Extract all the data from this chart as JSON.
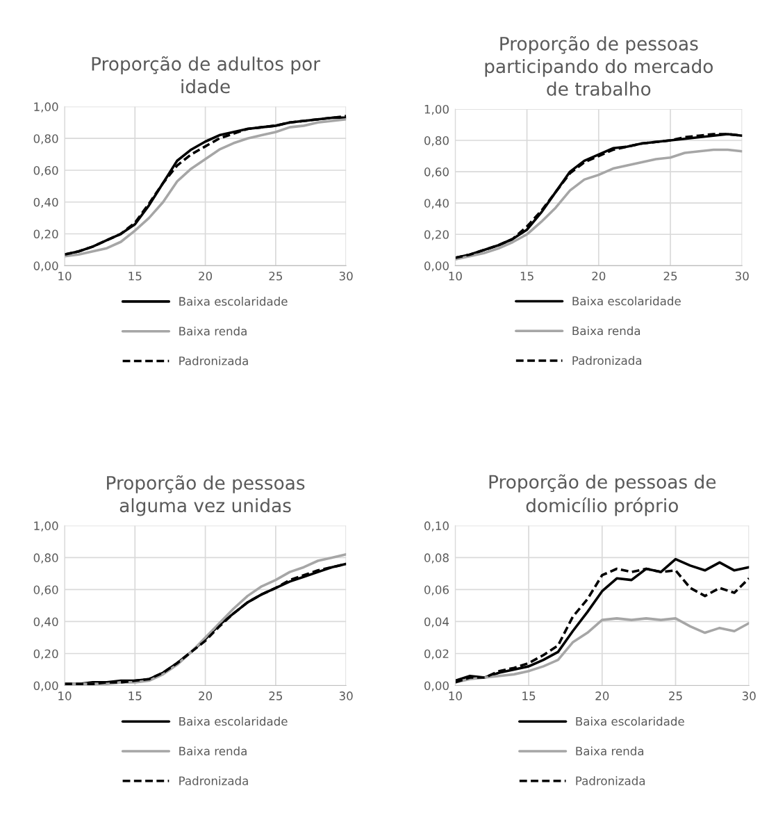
{
  "chart_data": [
    {
      "type": "line",
      "title": "Proporção de adultos por\nidade",
      "x": [
        10,
        11,
        12,
        13,
        14,
        15,
        16,
        17,
        18,
        19,
        20,
        21,
        22,
        23,
        24,
        25,
        26,
        27,
        28,
        29,
        30
      ],
      "series": [
        {
          "name": "Baixa escolaridade",
          "color": "#000000",
          "line_style": "solid",
          "values": [
            0.07,
            0.09,
            0.12,
            0.16,
            0.2,
            0.26,
            0.38,
            0.52,
            0.66,
            0.73,
            0.78,
            0.82,
            0.84,
            0.86,
            0.87,
            0.88,
            0.9,
            0.91,
            0.92,
            0.93,
            0.93
          ]
        },
        {
          "name": "Baixa renda",
          "color": "#a6a6a6",
          "line_style": "solid",
          "values": [
            0.06,
            0.07,
            0.09,
            0.11,
            0.15,
            0.22,
            0.3,
            0.4,
            0.53,
            0.61,
            0.67,
            0.73,
            0.77,
            0.8,
            0.82,
            0.84,
            0.87,
            0.88,
            0.9,
            0.91,
            0.92
          ]
        },
        {
          "name": "Padronizada",
          "color": "#000000",
          "line_style": "dashed",
          "values": [
            0.07,
            0.09,
            0.12,
            0.16,
            0.2,
            0.27,
            0.39,
            0.52,
            0.63,
            0.7,
            0.75,
            0.8,
            0.83,
            0.86,
            0.87,
            0.88,
            0.9,
            0.91,
            0.92,
            0.93,
            0.94
          ]
        }
      ],
      "xlim": [
        10,
        30
      ],
      "xticks": [
        10,
        15,
        20,
        25,
        30
      ],
      "ylim": [
        0,
        1
      ],
      "yticks": [
        {
          "value": 0,
          "label": "0,00"
        },
        {
          "value": 0.2,
          "label": "0,20"
        },
        {
          "value": 0.4,
          "label": "0,40"
        },
        {
          "value": 0.6,
          "label": "0,60"
        },
        {
          "value": 0.8,
          "label": "0,80"
        },
        {
          "value": 1,
          "label": "1,00"
        }
      ],
      "grid": true,
      "legend": "bottom",
      "marker": "none"
    },
    {
      "type": "line",
      "title": "Proporção de pessoas\nparticipando do mercado\nde trabalho",
      "x": [
        10,
        11,
        12,
        13,
        14,
        15,
        16,
        17,
        18,
        19,
        20,
        21,
        22,
        23,
        24,
        25,
        26,
        27,
        28,
        29,
        30
      ],
      "series": [
        {
          "name": "Baixa escolaridade",
          "color": "#000000",
          "line_style": "solid",
          "values": [
            0.05,
            0.07,
            0.1,
            0.13,
            0.17,
            0.23,
            0.34,
            0.47,
            0.6,
            0.67,
            0.71,
            0.75,
            0.76,
            0.78,
            0.79,
            0.8,
            0.81,
            0.82,
            0.83,
            0.84,
            0.83
          ]
        },
        {
          "name": "Baixa renda",
          "color": "#a6a6a6",
          "line_style": "solid",
          "values": [
            0.04,
            0.06,
            0.08,
            0.11,
            0.15,
            0.2,
            0.28,
            0.37,
            0.48,
            0.55,
            0.58,
            0.62,
            0.64,
            0.66,
            0.68,
            0.69,
            0.72,
            0.73,
            0.74,
            0.74,
            0.73
          ]
        },
        {
          "name": "Padronizada",
          "color": "#000000",
          "line_style": "dashed",
          "values": [
            0.05,
            0.07,
            0.1,
            0.13,
            0.17,
            0.25,
            0.35,
            0.47,
            0.59,
            0.66,
            0.7,
            0.74,
            0.76,
            0.78,
            0.79,
            0.8,
            0.82,
            0.83,
            0.84,
            0.84,
            0.83
          ]
        }
      ],
      "xlim": [
        10,
        30
      ],
      "xticks": [
        10,
        15,
        20,
        25,
        30
      ],
      "ylim": [
        0,
        1
      ],
      "yticks": [
        {
          "value": 0,
          "label": "0,00"
        },
        {
          "value": 0.2,
          "label": "0,20"
        },
        {
          "value": 0.4,
          "label": "0,40"
        },
        {
          "value": 0.6,
          "label": "0,60"
        },
        {
          "value": 0.8,
          "label": "0,80"
        },
        {
          "value": 1,
          "label": "1,00"
        }
      ],
      "grid": true,
      "legend": "bottom",
      "marker": "none"
    },
    {
      "type": "line",
      "title": "Proporção de pessoas\nalguma vez unidas",
      "x": [
        10,
        11,
        12,
        13,
        14,
        15,
        16,
        17,
        18,
        19,
        20,
        21,
        22,
        23,
        24,
        25,
        26,
        27,
        28,
        29,
        30
      ],
      "series": [
        {
          "name": "Baixa escolaridade",
          "color": "#000000",
          "line_style": "solid",
          "values": [
            0.01,
            0.01,
            0.02,
            0.02,
            0.03,
            0.03,
            0.04,
            0.08,
            0.14,
            0.21,
            0.29,
            0.38,
            0.45,
            0.52,
            0.57,
            0.61,
            0.65,
            0.68,
            0.71,
            0.74,
            0.76
          ]
        },
        {
          "name": "Baixa renda",
          "color": "#a6a6a6",
          "line_style": "solid",
          "values": [
            0.01,
            0.01,
            0.01,
            0.01,
            0.02,
            0.02,
            0.03,
            0.07,
            0.13,
            0.21,
            0.3,
            0.39,
            0.48,
            0.56,
            0.62,
            0.66,
            0.71,
            0.74,
            0.78,
            0.8,
            0.82
          ]
        },
        {
          "name": "Padronizada",
          "color": "#000000",
          "line_style": "dashed",
          "values": [
            0.01,
            0.01,
            0.01,
            0.02,
            0.02,
            0.03,
            0.04,
            0.08,
            0.14,
            0.21,
            0.28,
            0.37,
            0.45,
            0.52,
            0.57,
            0.61,
            0.66,
            0.69,
            0.72,
            0.74,
            0.76
          ]
        }
      ],
      "xlim": [
        10,
        30
      ],
      "xticks": [
        10,
        15,
        20,
        25,
        30
      ],
      "ylim": [
        0,
        1
      ],
      "yticks": [
        {
          "value": 0,
          "label": "0,00"
        },
        {
          "value": 0.2,
          "label": "0,20"
        },
        {
          "value": 0.4,
          "label": "0,40"
        },
        {
          "value": 0.6,
          "label": "0,60"
        },
        {
          "value": 0.8,
          "label": "0,80"
        },
        {
          "value": 1,
          "label": "1,00"
        }
      ],
      "grid": true,
      "legend": "bottom",
      "marker": "none"
    },
    {
      "type": "line",
      "title": "Proporção de pessoas de\ndomicílio próprio",
      "x": [
        10,
        11,
        12,
        13,
        14,
        15,
        16,
        17,
        18,
        19,
        20,
        21,
        22,
        23,
        24,
        25,
        26,
        27,
        28,
        29,
        30
      ],
      "series": [
        {
          "name": "Baixa escolaridade",
          "color": "#000000",
          "line_style": "solid",
          "values": [
            0.003,
            0.006,
            0.005,
            0.008,
            0.01,
            0.012,
            0.016,
            0.021,
            0.034,
            0.046,
            0.059,
            0.067,
            0.066,
            0.073,
            0.071,
            0.079,
            0.075,
            0.072,
            0.077,
            0.072,
            0.074
          ]
        },
        {
          "name": "Baixa renda",
          "color": "#a6a6a6",
          "line_style": "solid",
          "values": [
            0.002,
            0.004,
            0.005,
            0.006,
            0.007,
            0.009,
            0.012,
            0.016,
            0.027,
            0.033,
            0.041,
            0.042,
            0.041,
            0.042,
            0.041,
            0.042,
            0.037,
            0.033,
            0.036,
            0.034,
            0.039
          ]
        },
        {
          "name": "Padronizada",
          "color": "#000000",
          "line_style": "dashed",
          "values": [
            0.002,
            0.005,
            0.005,
            0.009,
            0.011,
            0.014,
            0.019,
            0.025,
            0.043,
            0.054,
            0.069,
            0.073,
            0.071,
            0.073,
            0.071,
            0.072,
            0.061,
            0.056,
            0.061,
            0.058,
            0.067
          ]
        }
      ],
      "xlim": [
        10,
        30
      ],
      "xticks": [
        10,
        15,
        20,
        25,
        30
      ],
      "ylim": [
        0,
        0.1
      ],
      "yticks": [
        {
          "value": 0,
          "label": "0,00"
        },
        {
          "value": 0.02,
          "label": "0,02"
        },
        {
          "value": 0.04,
          "label": "0,04"
        },
        {
          "value": 0.06,
          "label": "0,06"
        },
        {
          "value": 0.08,
          "label": "0,08"
        },
        {
          "value": 0.1,
          "label": "0,10"
        }
      ],
      "grid": true,
      "legend": "bottom",
      "marker": "none"
    }
  ]
}
